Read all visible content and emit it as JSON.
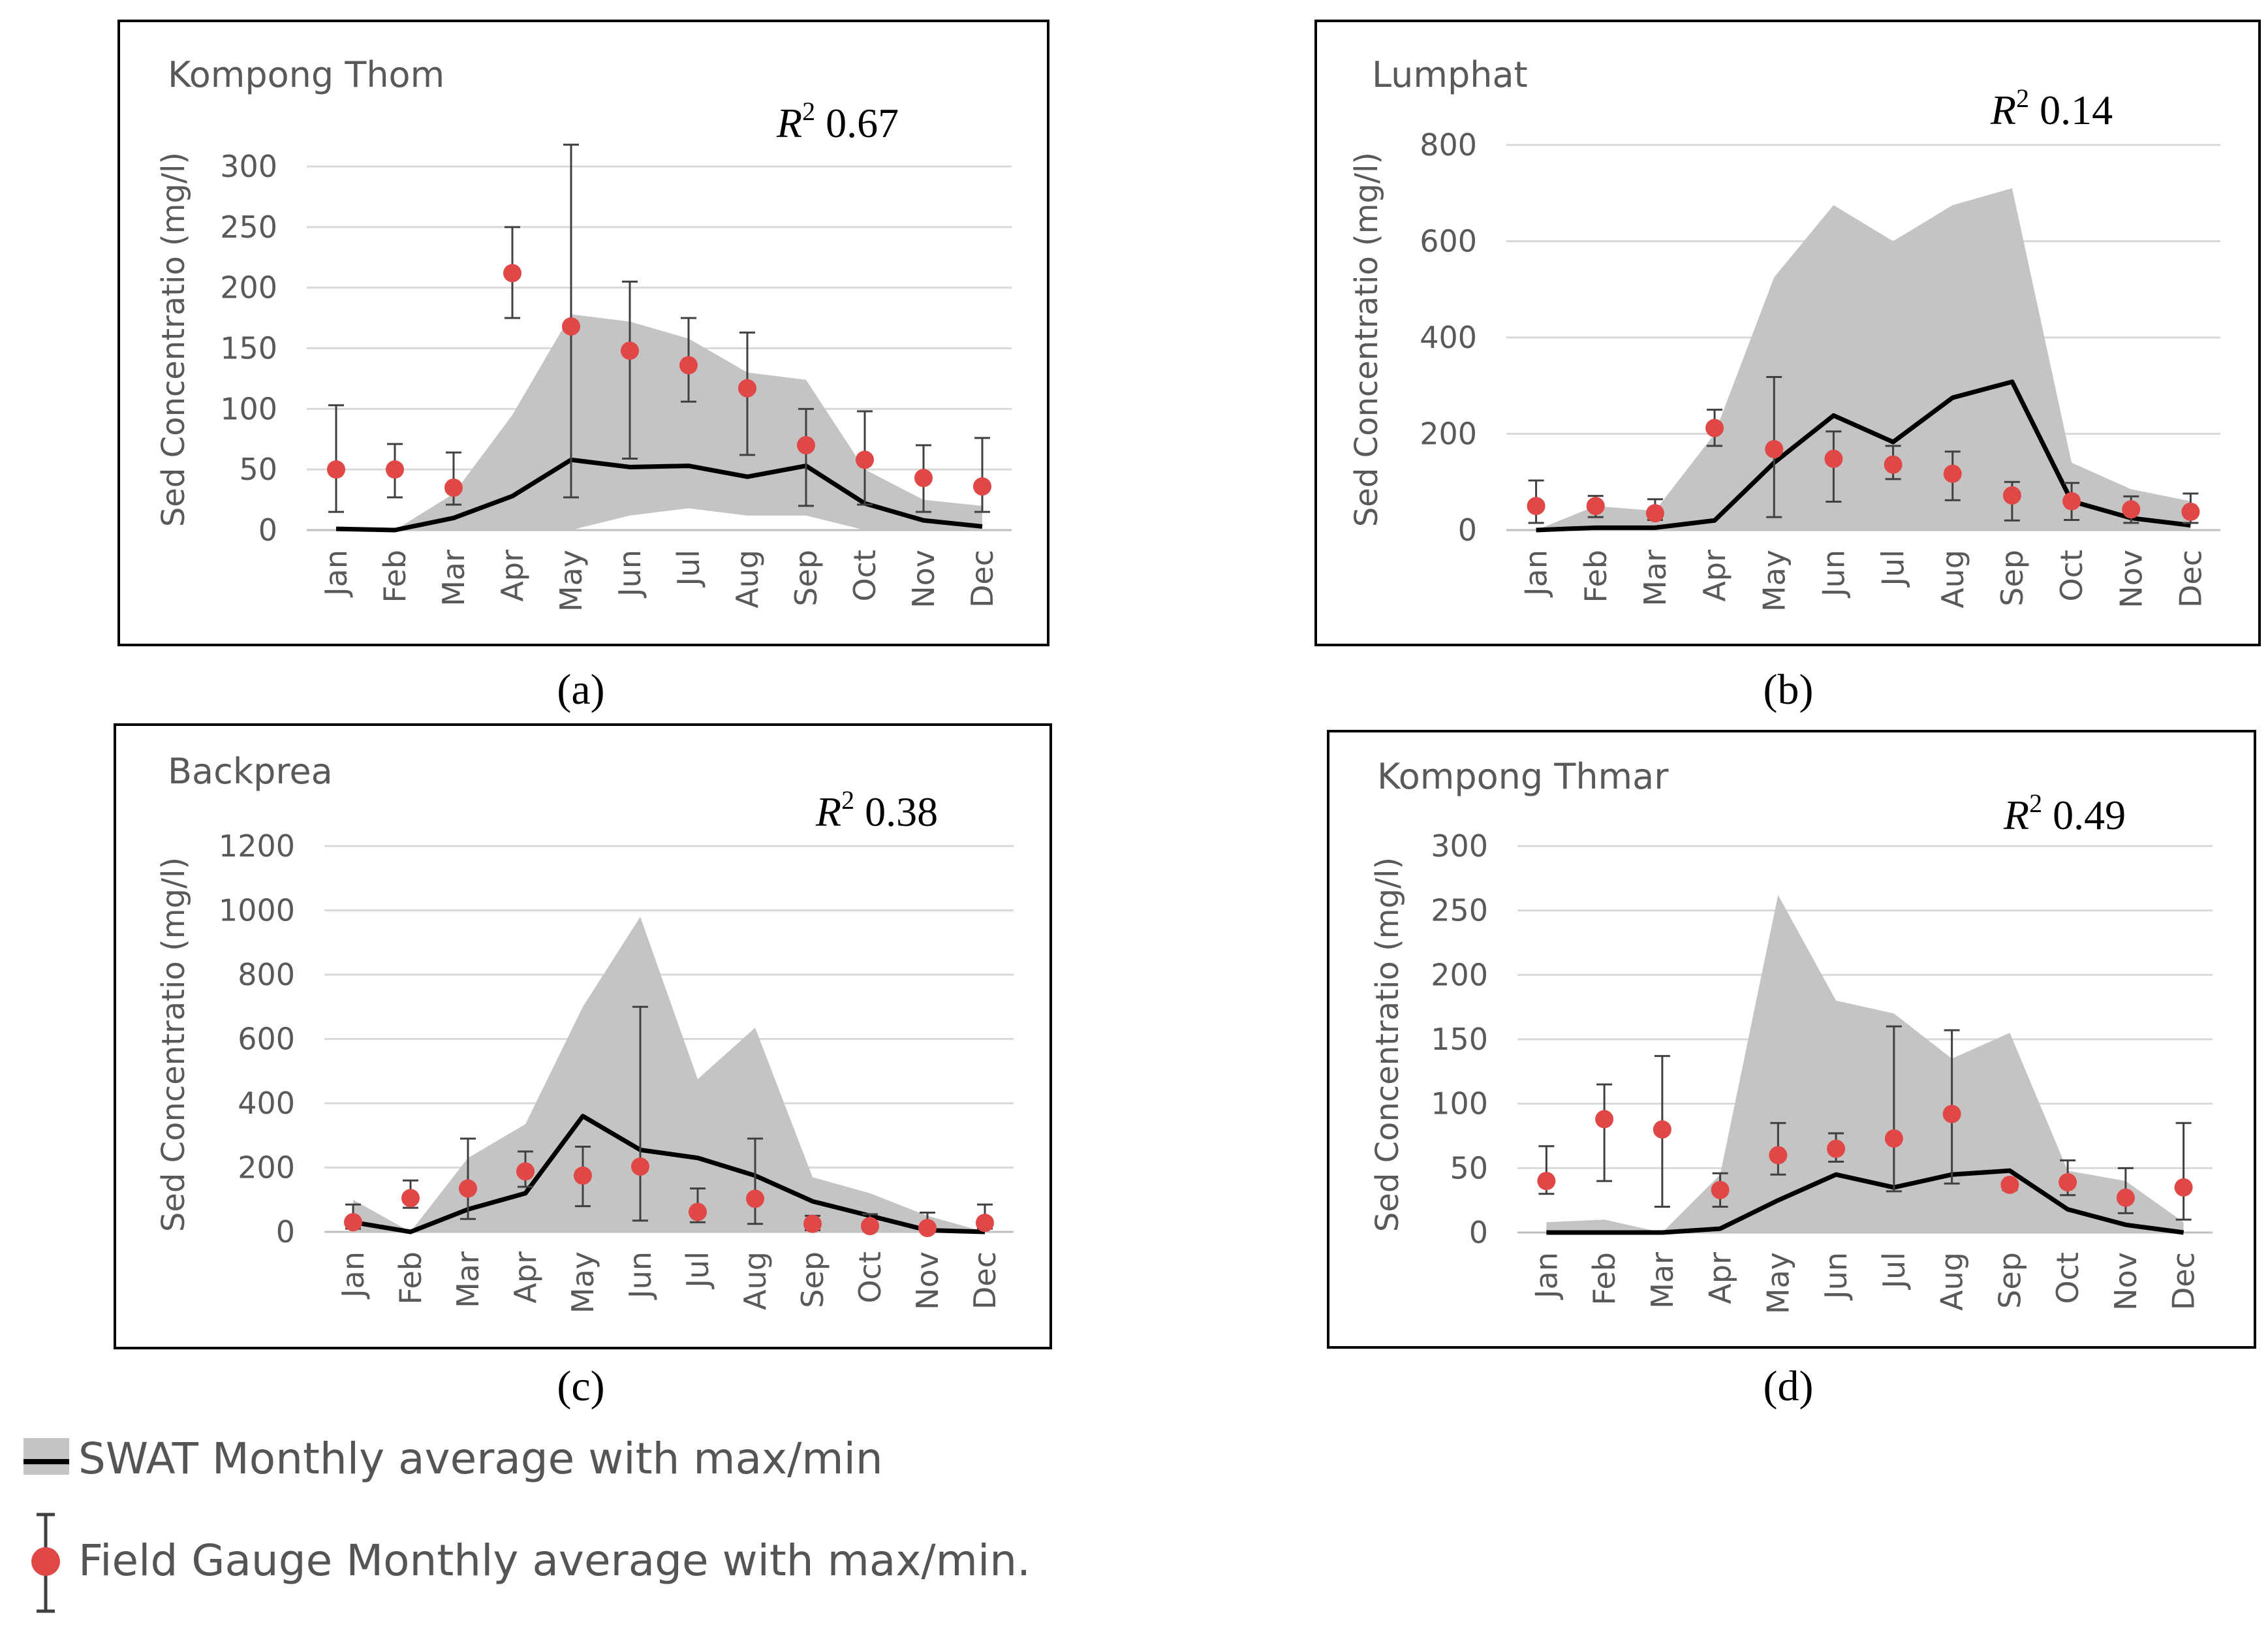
{
  "legend": {
    "swat": "SWAT Monthly average with max/min",
    "field": "Field Gauge Monthly average with max/min."
  },
  "colors": {
    "band": "#c4c4c4",
    "line": "#000000",
    "point": "#e04848",
    "grid": "#d9d9d9",
    "axis_text": "#595959",
    "errbar": "#404040"
  },
  "chart_data": [
    {
      "type": "line",
      "panel_label": "(a)",
      "title": "Kompong Thom",
      "r2_label": "R",
      "r2_value": "0.67",
      "ylabel": "Sed Concentratio (mg/l)",
      "xlabel": "",
      "ylim": [
        0,
        300
      ],
      "yticks": [
        0,
        50,
        100,
        150,
        200,
        250,
        300
      ],
      "categories": [
        "Jan",
        "Feb",
        "Mar",
        "Apr",
        "May",
        "Jun",
        "Jul",
        "Aug",
        "Sep",
        "Oct",
        "Nov",
        "Dec"
      ],
      "grid": true,
      "swat_avg": [
        1,
        0,
        10,
        28,
        58,
        52,
        53,
        44,
        53,
        22,
        8,
        3
      ],
      "swat_max": [
        0,
        0,
        30,
        95,
        178,
        172,
        158,
        130,
        124,
        50,
        25,
        20
      ],
      "swat_min": [
        0,
        0,
        0,
        0,
        0,
        12,
        18,
        12,
        12,
        0,
        0,
        0
      ],
      "field_avg": [
        50,
        50,
        35,
        212,
        168,
        148,
        136,
        117,
        70,
        58,
        43,
        36
      ],
      "field_max": [
        103,
        71,
        64,
        250,
        318,
        205,
        175,
        163,
        100,
        98,
        70,
        76
      ],
      "field_min": [
        15,
        27,
        21,
        175,
        27,
        59,
        106,
        62,
        20,
        21,
        15,
        15
      ]
    },
    {
      "type": "line",
      "panel_label": "(b)",
      "title": "Lumphat",
      "r2_label": "R",
      "r2_value": "0.14",
      "ylabel": "Sed Concentratio (mg/l)",
      "xlabel": "",
      "ylim": [
        0,
        800
      ],
      "yticks": [
        0,
        200,
        400,
        600,
        800
      ],
      "categories": [
        "Jan",
        "Feb",
        "Mar",
        "Apr",
        "May",
        "Jun",
        "Jul",
        "Aug",
        "Sep",
        "Oct",
        "Nov",
        "Dec"
      ],
      "grid": true,
      "swat_avg": [
        0,
        5,
        5,
        20,
        140,
        238,
        183,
        275,
        308,
        60,
        25,
        10
      ],
      "swat_max": [
        0,
        50,
        40,
        200,
        525,
        675,
        600,
        675,
        710,
        140,
        85,
        60
      ],
      "swat_min": [
        0,
        0,
        0,
        0,
        0,
        0,
        0,
        0,
        0,
        0,
        0,
        0
      ],
      "field_avg": [
        50,
        50,
        35,
        212,
        168,
        148,
        136,
        117,
        72,
        60,
        43,
        38
      ],
      "field_max": [
        103,
        71,
        64,
        250,
        318,
        205,
        175,
        163,
        100,
        98,
        70,
        76
      ],
      "field_min": [
        15,
        27,
        21,
        175,
        27,
        59,
        106,
        62,
        20,
        21,
        15,
        15
      ]
    },
    {
      "type": "line",
      "panel_label": "(c)",
      "title": "Backprea",
      "r2_label": "R",
      "r2_value": "0.38",
      "ylabel": "Sed Concentratio (mg/l)",
      "xlabel": "",
      "ylim": [
        0,
        1200
      ],
      "yticks": [
        0,
        200,
        400,
        600,
        800,
        1000,
        1200
      ],
      "categories": [
        "Jan",
        "Feb",
        "Mar",
        "Apr",
        "May",
        "Jun",
        "Jul",
        "Aug",
        "Sep",
        "Oct",
        "Nov",
        "Dec"
      ],
      "grid": true,
      "swat_avg": [
        30,
        0,
        70,
        120,
        360,
        255,
        230,
        175,
        95,
        50,
        5,
        0
      ],
      "swat_max": [
        100,
        0,
        230,
        335,
        700,
        980,
        475,
        635,
        170,
        120,
        50,
        0
      ],
      "swat_min": [
        0,
        0,
        0,
        0,
        0,
        0,
        0,
        0,
        0,
        0,
        0,
        0
      ],
      "field_avg": [
        30,
        105,
        135,
        188,
        175,
        203,
        62,
        103,
        25,
        18,
        12,
        28
      ],
      "field_max": [
        85,
        160,
        290,
        250,
        265,
        700,
        135,
        290,
        50,
        55,
        60,
        85
      ],
      "field_min": [
        10,
        75,
        40,
        140,
        80,
        35,
        30,
        25,
        5,
        5,
        0,
        10
      ]
    },
    {
      "type": "line",
      "panel_label": "(d)",
      "title": "Kompong Thmar",
      "r2_label": "R",
      "r2_value": "0.49",
      "ylabel": "Sed Concentratio (mg/l)",
      "xlabel": "",
      "ylim": [
        0,
        300
      ],
      "yticks": [
        0,
        50,
        100,
        150,
        200,
        250,
        300
      ],
      "categories": [
        "Jan",
        "Feb",
        "Mar",
        "Apr",
        "May",
        "Jun",
        "Jul",
        "Aug",
        "Sep",
        "Oct",
        "Nov",
        "Dec"
      ],
      "grid": true,
      "swat_avg": [
        0,
        0,
        0,
        3,
        25,
        45,
        35,
        45,
        48,
        18,
        6,
        0
      ],
      "swat_max": [
        8,
        10,
        0,
        45,
        262,
        180,
        170,
        135,
        155,
        48,
        40,
        8
      ],
      "swat_min": [
        0,
        0,
        0,
        0,
        0,
        0,
        0,
        0,
        0,
        0,
        0,
        0
      ],
      "field_avg": [
        40,
        88,
        80,
        33,
        60,
        65,
        73,
        92,
        37,
        39,
        27,
        35
      ],
      "field_max": [
        67,
        115,
        137,
        46,
        85,
        77,
        160,
        157,
        40,
        56,
        50,
        85
      ],
      "field_min": [
        30,
        40,
        20,
        20,
        45,
        55,
        32,
        38,
        33,
        29,
        15,
        10
      ]
    }
  ]
}
